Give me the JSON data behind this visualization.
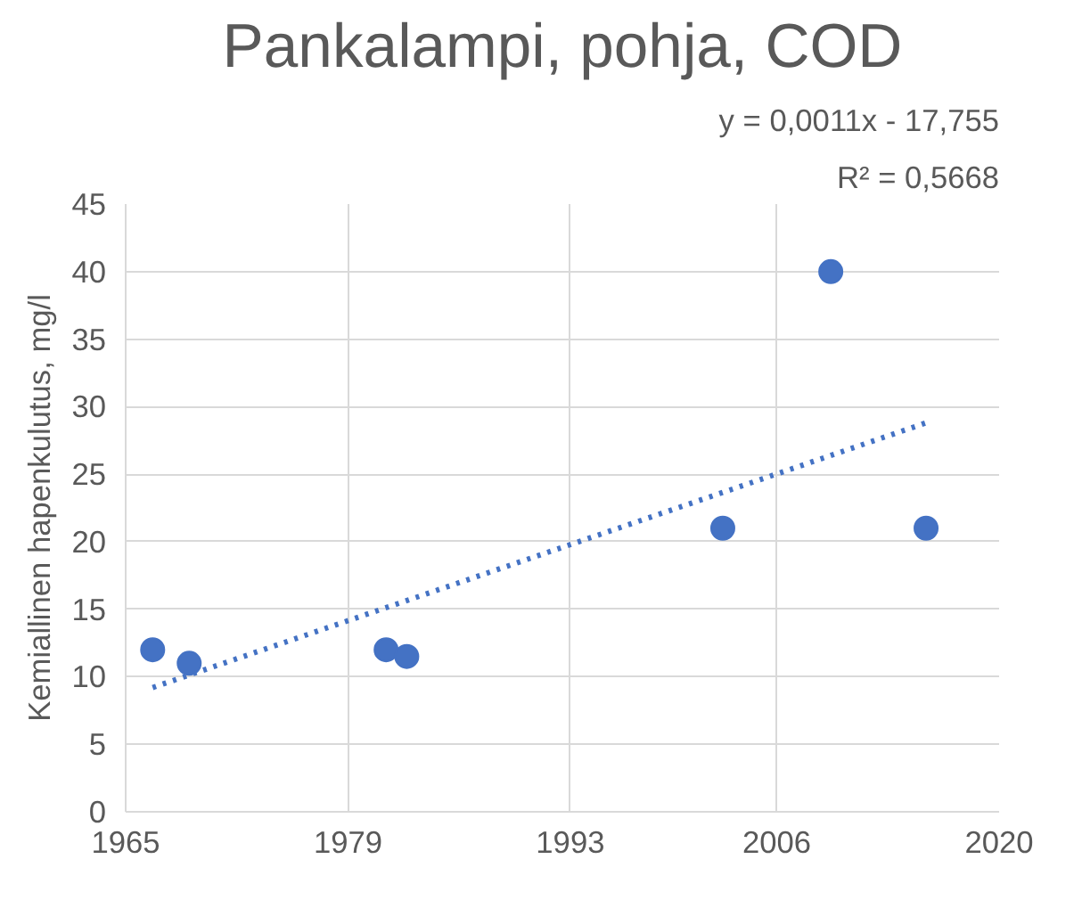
{
  "chart_data": {
    "type": "scatter",
    "title": "Pankalampi, pohja, COD",
    "ylabel": "Kemiallinen hapenkulutus, mg/l",
    "xlim": [
      1965,
      2020
    ],
    "xticks": [
      1965,
      1979,
      1993,
      2006,
      2020
    ],
    "ylim": [
      0,
      45
    ],
    "yticks": [
      0,
      5,
      10,
      15,
      20,
      25,
      30,
      35,
      40,
      45
    ],
    "grid": true,
    "marker": "circle",
    "series": [
      {
        "color": "#4472c4",
        "x": [
          1966.7,
          1969,
          1981.4,
          1982.7,
          2002.6,
          2009.4,
          2015.4
        ],
        "values": [
          12,
          11,
          12,
          11.5,
          21,
          40,
          21
        ]
      },
      {
        "type": "line",
        "line_style": "dotted",
        "marker": "none",
        "color": "#4472c4",
        "x": [
          1966.7,
          2015.4
        ],
        "values": [
          9.2,
          28.8
        ]
      }
    ],
    "annotations": [
      "y = 0,0011x - 17,755",
      "R² = 0,5668"
    ]
  }
}
